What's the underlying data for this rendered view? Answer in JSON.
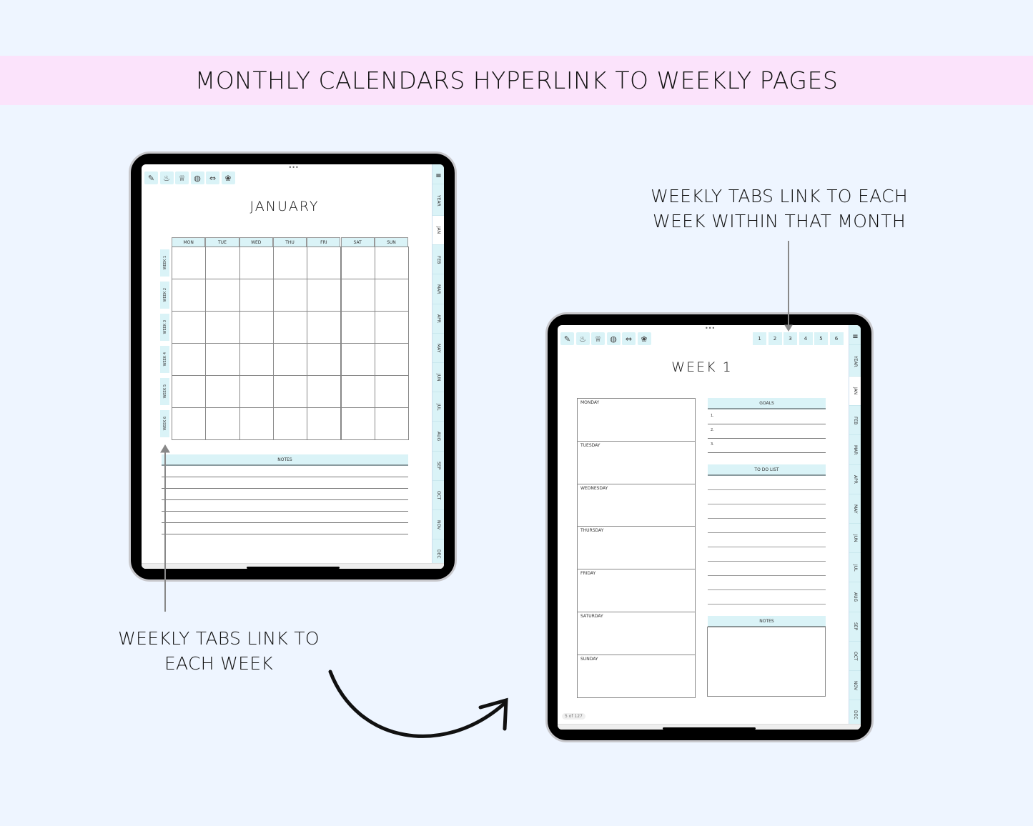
{
  "banner": {
    "title": "MONTHLY CALENDARS HYPERLINK TO WEEKLY PAGES",
    "bg": "#fbe3fb"
  },
  "captions": {
    "top_right": [
      "WEEKLY TABS LINK TO EACH",
      "WEEK WITHIN THAT MONTH"
    ],
    "bottom_left": [
      "WEEKLY TABS LINK TO",
      "EACH WEEK"
    ]
  },
  "toolbar_icons": [
    "notes-icon",
    "teapot-icon",
    "trophy-icon",
    "basketball-icon",
    "dumbbell-icon",
    "lotus-icon"
  ],
  "side_tabs": [
    "YEAR",
    "JAN",
    "FEB",
    "MAR",
    "APR",
    "MAY",
    "JUN",
    "JUL",
    "AUG",
    "SEP",
    "OCT",
    "NOV",
    "DEC"
  ],
  "active_tab": "JAN",
  "accent": "#daf3f7",
  "monthly": {
    "title": "JANUARY",
    "days": [
      "MON",
      "TUE",
      "WED",
      "THU",
      "FRI",
      "SAT",
      "SUN"
    ],
    "weeks": [
      "WEEK 1",
      "WEEK 2",
      "WEEK 3",
      "WEEK 4",
      "WEEK 5",
      "WEEK 6"
    ],
    "notes": "NOTES"
  },
  "weekly": {
    "title": "WEEK 1",
    "week_tabs": [
      "1",
      "2",
      "3",
      "4",
      "5",
      "6"
    ],
    "days": [
      "MONDAY",
      "TUESDAY",
      "WEDNESDAY",
      "THURSDAY",
      "FRIDAY",
      "SATURDAY",
      "SUNDAY"
    ],
    "goals": "GOALS",
    "goal_items": [
      "1.",
      "2.",
      "3."
    ],
    "todo": "TO DO LIST",
    "notes": "NOTES",
    "page": "5 of 127"
  }
}
